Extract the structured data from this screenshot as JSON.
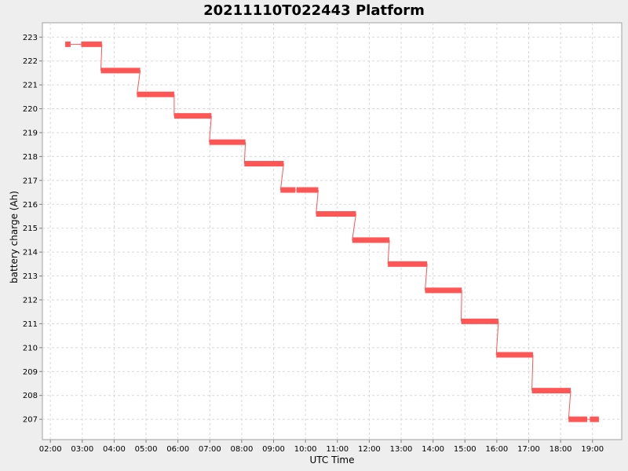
{
  "chart_data": {
    "type": "line",
    "title": "20211110T022443 Platform",
    "xlabel": "UTC Time",
    "ylabel": "battery charge (Ah)",
    "xlim": [
      "01:45",
      "19:55"
    ],
    "ylim": [
      206.15,
      223.6
    ],
    "x_ticks": [
      "02:00",
      "03:00",
      "04:00",
      "05:00",
      "06:00",
      "07:00",
      "08:00",
      "09:00",
      "10:00",
      "11:00",
      "12:00",
      "13:00",
      "14:00",
      "15:00",
      "16:00",
      "17:00",
      "18:00",
      "19:00"
    ],
    "y_ticks": [
      207,
      208,
      209,
      210,
      211,
      212,
      213,
      214,
      215,
      216,
      217,
      218,
      219,
      220,
      221,
      222,
      223
    ],
    "grid": true,
    "series": [
      {
        "color": "#ff5555",
        "segments": [
          {
            "start": "02:28",
            "end": "02:38",
            "value": 222.7
          },
          {
            "start": "02:58",
            "end": "03:37",
            "value": 222.7
          },
          {
            "start": "03:35",
            "end": "04:49",
            "value": 221.6
          },
          {
            "start": "04:43",
            "end": "05:53",
            "value": 220.6
          },
          {
            "start": "05:53",
            "end": "07:03",
            "value": 219.7
          },
          {
            "start": "06:59",
            "end": "08:07",
            "value": 218.6
          },
          {
            "start": "08:05",
            "end": "09:19",
            "value": 217.7
          },
          {
            "start": "09:13",
            "end": "09:41",
            "value": 216.6
          },
          {
            "start": "09:43",
            "end": "10:24",
            "value": 216.6
          },
          {
            "start": "10:20",
            "end": "11:35",
            "value": 215.6
          },
          {
            "start": "11:28",
            "end": "12:38",
            "value": 214.5
          },
          {
            "start": "12:35",
            "end": "13:49",
            "value": 213.5
          },
          {
            "start": "13:45",
            "end": "14:54",
            "value": 212.4
          },
          {
            "start": "14:53",
            "end": "16:03",
            "value": 211.1
          },
          {
            "start": "15:59",
            "end": "17:08",
            "value": 209.7
          },
          {
            "start": "17:06",
            "end": "18:19",
            "value": 208.2
          },
          {
            "start": "18:15",
            "end": "18:50",
            "value": 207.0
          },
          {
            "start": "18:55",
            "end": "19:12",
            "value": 207.0
          }
        ]
      }
    ]
  }
}
